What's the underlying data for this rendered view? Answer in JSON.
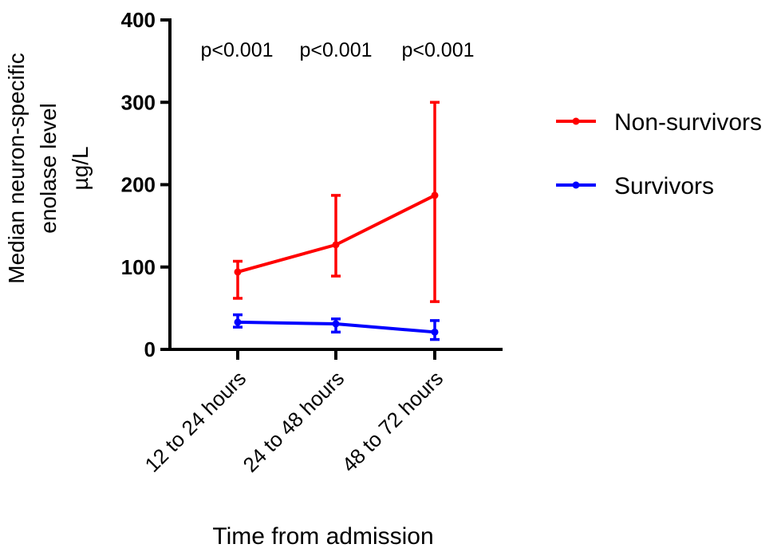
{
  "chart_data": {
    "type": "line",
    "title": "",
    "xlabel": "Time from admission",
    "ylabel_lines": [
      "Median neuron-specific",
      "enolase level",
      "µg/L"
    ],
    "categories": [
      "12 to 24 hours",
      "24 to 48 hours",
      "48 to 72 hours"
    ],
    "ylim": [
      0,
      400
    ],
    "yticks": [
      "0",
      "100",
      "200",
      "300",
      "400"
    ],
    "grid": false,
    "legend_position": "right",
    "annotations": [
      "p<0.001",
      "p<0.001",
      "p<0.001"
    ],
    "series": [
      {
        "name": "Non-survivors",
        "color": "#ff0000",
        "values": [
          94,
          127,
          187
        ],
        "error_low": [
          62,
          89,
          58
        ],
        "error_high": [
          107,
          187,
          300
        ]
      },
      {
        "name": "Survivors",
        "color": "#0000ff",
        "values": [
          33,
          31,
          21
        ],
        "error_low": [
          27,
          21,
          12
        ],
        "error_high": [
          42,
          37,
          35
        ]
      }
    ]
  }
}
